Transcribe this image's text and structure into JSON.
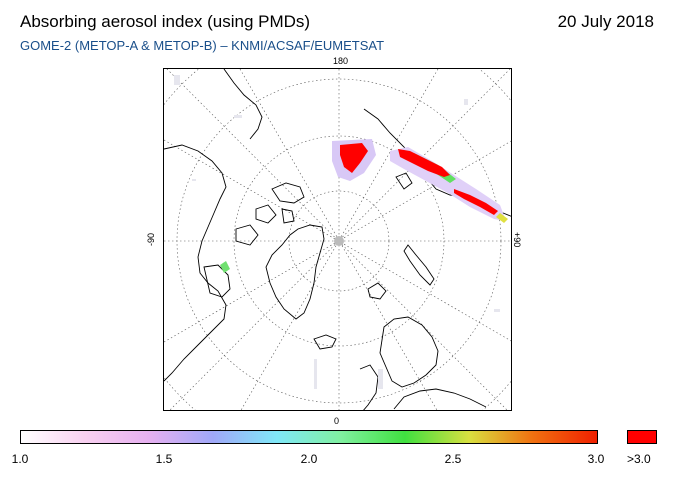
{
  "header": {
    "title": "Absorbing aerosol index (using PMDs)",
    "date": "20 July 2018",
    "subtitle": "GOME-2 (METOP-A & METOP-B)  –  KNMI/ACSAF/EUMETSAT"
  },
  "map": {
    "projection": "polar stereographic (north pole)",
    "labels": {
      "top": "180",
      "bottom": "0",
      "left": "-90",
      "right": "+90"
    }
  },
  "colorbar": {
    "ticks": [
      "1.0",
      "1.5",
      "2.0",
      "2.5",
      "3.0"
    ],
    "tick_values": [
      1.0,
      1.5,
      2.0,
      2.5,
      3.0
    ],
    "overflow_label": ">3.0",
    "range": [
      1.0,
      3.0
    ],
    "gradient_colors": [
      "#ffffff",
      "#f8d0f0",
      "#e6b0f0",
      "#a0a8f8",
      "#80e8f8",
      "#80f0a0",
      "#40e040",
      "#d8e040",
      "#f07010",
      "#f02000"
    ],
    "overflow_color": "#ff0000"
  },
  "colors": {
    "subtitle": "#1a4f8a",
    "high_aerosol": "#ff0000"
  }
}
